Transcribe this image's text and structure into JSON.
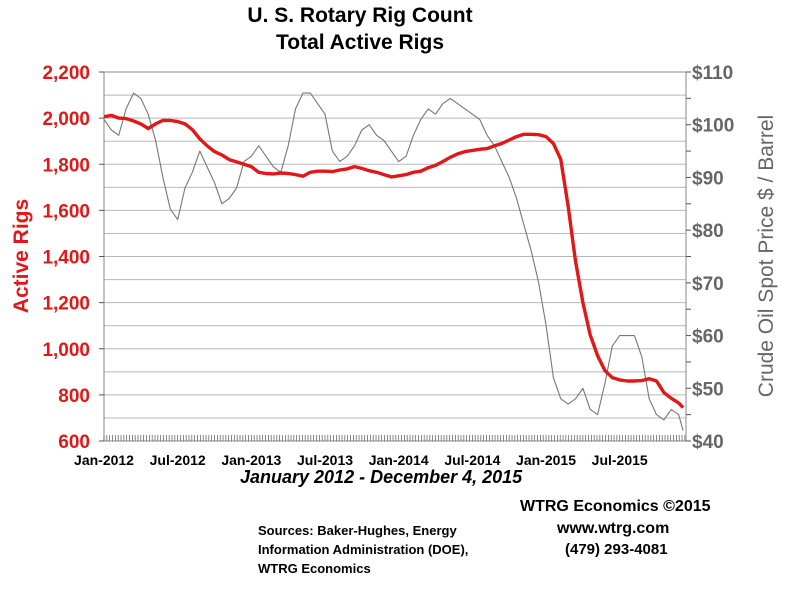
{
  "chart_data": {
    "type": "line",
    "title": "U. S. Rotary Rig Count",
    "title_line2": "Total Active Rigs",
    "subtitle": "January 2012 - December 4, 2015",
    "x_tick_labels": [
      "Jan-2012",
      "Jul-2012",
      "Jan-2013",
      "Jul-2013",
      "Jan-2014",
      "Jul-2014",
      "Jan-2015",
      "Jul-2015"
    ],
    "left_axis": {
      "label": "Active Rigs",
      "range": [
        600,
        2200
      ],
      "ticks": [
        600,
        800,
        1000,
        1200,
        1400,
        1600,
        1800,
        2000,
        2200
      ],
      "tick_labels": [
        "600",
        "800",
        "1,000",
        "1,200",
        "1,400",
        "1,600",
        "1,800",
        "2,000",
        "2,200"
      ],
      "color": "#e01818"
    },
    "right_axis": {
      "label": "Crude Oil Spot Price $ / Barrel",
      "range": [
        40,
        110
      ],
      "ticks": [
        40,
        50,
        60,
        70,
        80,
        90,
        100,
        110
      ],
      "tick_labels": [
        "$40",
        "$50",
        "$60",
        "$70",
        "$80",
        "$90",
        "$100",
        "$110"
      ],
      "color": "#666666"
    },
    "x_range": [
      2012.0,
      2015.95
    ],
    "grid": true,
    "series": [
      {
        "axis": "left",
        "color": "#e01818",
        "x": [
          2012.0,
          2012.05,
          2012.1,
          2012.15,
          2012.2,
          2012.25,
          2012.3,
          2012.35,
          2012.4,
          2012.45,
          2012.5,
          2012.55,
          2012.6,
          2012.65,
          2012.7,
          2012.75,
          2012.8,
          2012.85,
          2012.9,
          2012.95,
          2013.0,
          2013.05,
          2013.1,
          2013.15,
          2013.2,
          2013.25,
          2013.3,
          2013.35,
          2013.4,
          2013.45,
          2013.5,
          2013.55,
          2013.6,
          2013.65,
          2013.7,
          2013.75,
          2013.8,
          2013.85,
          2013.9,
          2013.95,
          2014.0,
          2014.05,
          2014.1,
          2014.15,
          2014.2,
          2014.25,
          2014.3,
          2014.35,
          2014.4,
          2014.45,
          2014.5,
          2014.55,
          2014.6,
          2014.65,
          2014.7,
          2014.75,
          2014.8,
          2014.85,
          2014.9,
          2014.95,
          2015.0,
          2015.05,
          2015.1,
          2015.15,
          2015.2,
          2015.25,
          2015.3,
          2015.35,
          2015.4,
          2015.45,
          2015.5,
          2015.55,
          2015.6,
          2015.65,
          2015.7,
          2015.75,
          2015.8,
          2015.85,
          2015.9,
          2015.93
        ],
        "y": [
          2006,
          2012,
          2000,
          1998,
          1988,
          1975,
          1955,
          1975,
          1990,
          1990,
          1985,
          1975,
          1950,
          1910,
          1880,
          1855,
          1840,
          1820,
          1810,
          1800,
          1790,
          1765,
          1760,
          1758,
          1762,
          1760,
          1755,
          1748,
          1765,
          1770,
          1770,
          1768,
          1775,
          1780,
          1790,
          1782,
          1772,
          1765,
          1755,
          1745,
          1750,
          1755,
          1765,
          1770,
          1785,
          1795,
          1812,
          1830,
          1845,
          1855,
          1860,
          1865,
          1868,
          1880,
          1890,
          1905,
          1920,
          1930,
          1930,
          1928,
          1920,
          1890,
          1820,
          1620,
          1380,
          1200,
          1060,
          970,
          905,
          875,
          865,
          860,
          860,
          862,
          870,
          860,
          810,
          785,
          765,
          745
        ]
      },
      {
        "axis": "right",
        "color": "#777777",
        "x": [
          2012.0,
          2012.05,
          2012.1,
          2012.15,
          2012.2,
          2012.25,
          2012.3,
          2012.35,
          2012.4,
          2012.45,
          2012.5,
          2012.55,
          2012.6,
          2012.65,
          2012.7,
          2012.75,
          2012.8,
          2012.85,
          2012.9,
          2012.95,
          2013.0,
          2013.05,
          2013.1,
          2013.15,
          2013.2,
          2013.25,
          2013.3,
          2013.35,
          2013.4,
          2013.45,
          2013.5,
          2013.55,
          2013.6,
          2013.65,
          2013.7,
          2013.75,
          2013.8,
          2013.85,
          2013.9,
          2013.95,
          2014.0,
          2014.05,
          2014.1,
          2014.15,
          2014.2,
          2014.25,
          2014.3,
          2014.35,
          2014.4,
          2014.45,
          2014.5,
          2014.55,
          2014.6,
          2014.65,
          2014.7,
          2014.75,
          2014.8,
          2014.85,
          2014.9,
          2014.95,
          2015.0,
          2015.05,
          2015.1,
          2015.15,
          2015.2,
          2015.25,
          2015.3,
          2015.35,
          2015.4,
          2015.45,
          2015.5,
          2015.55,
          2015.6,
          2015.65,
          2015.7,
          2015.75,
          2015.8,
          2015.85,
          2015.9,
          2015.93
        ],
        "y": [
          101,
          99,
          98,
          103,
          106,
          105,
          102,
          97,
          90,
          84,
          82,
          88,
          91,
          95,
          92,
          89,
          85,
          86,
          88,
          93,
          94,
          96,
          94,
          92,
          91,
          96,
          103,
          106,
          106,
          104,
          102,
          95,
          93,
          94,
          96,
          99,
          100,
          98,
          97,
          95,
          93,
          94,
          98,
          101,
          103,
          102,
          104,
          105,
          104,
          103,
          102,
          101,
          98,
          96,
          93,
          90,
          86,
          81,
          76,
          70,
          62,
          52,
          48,
          47,
          48,
          50,
          46,
          45,
          51,
          58,
          60,
          60,
          60,
          56,
          48,
          45,
          44,
          46,
          45,
          42
        ]
      }
    ]
  },
  "footer": {
    "company": "WTRG Economics  ©2015",
    "website": "www.wtrg.com",
    "phone": "(479) 293-4081",
    "sources_line1": "Sources: Baker-Hughes, Energy",
    "sources_line2": "Information Administration (DOE),",
    "sources_line3": "WTRG Economics"
  }
}
